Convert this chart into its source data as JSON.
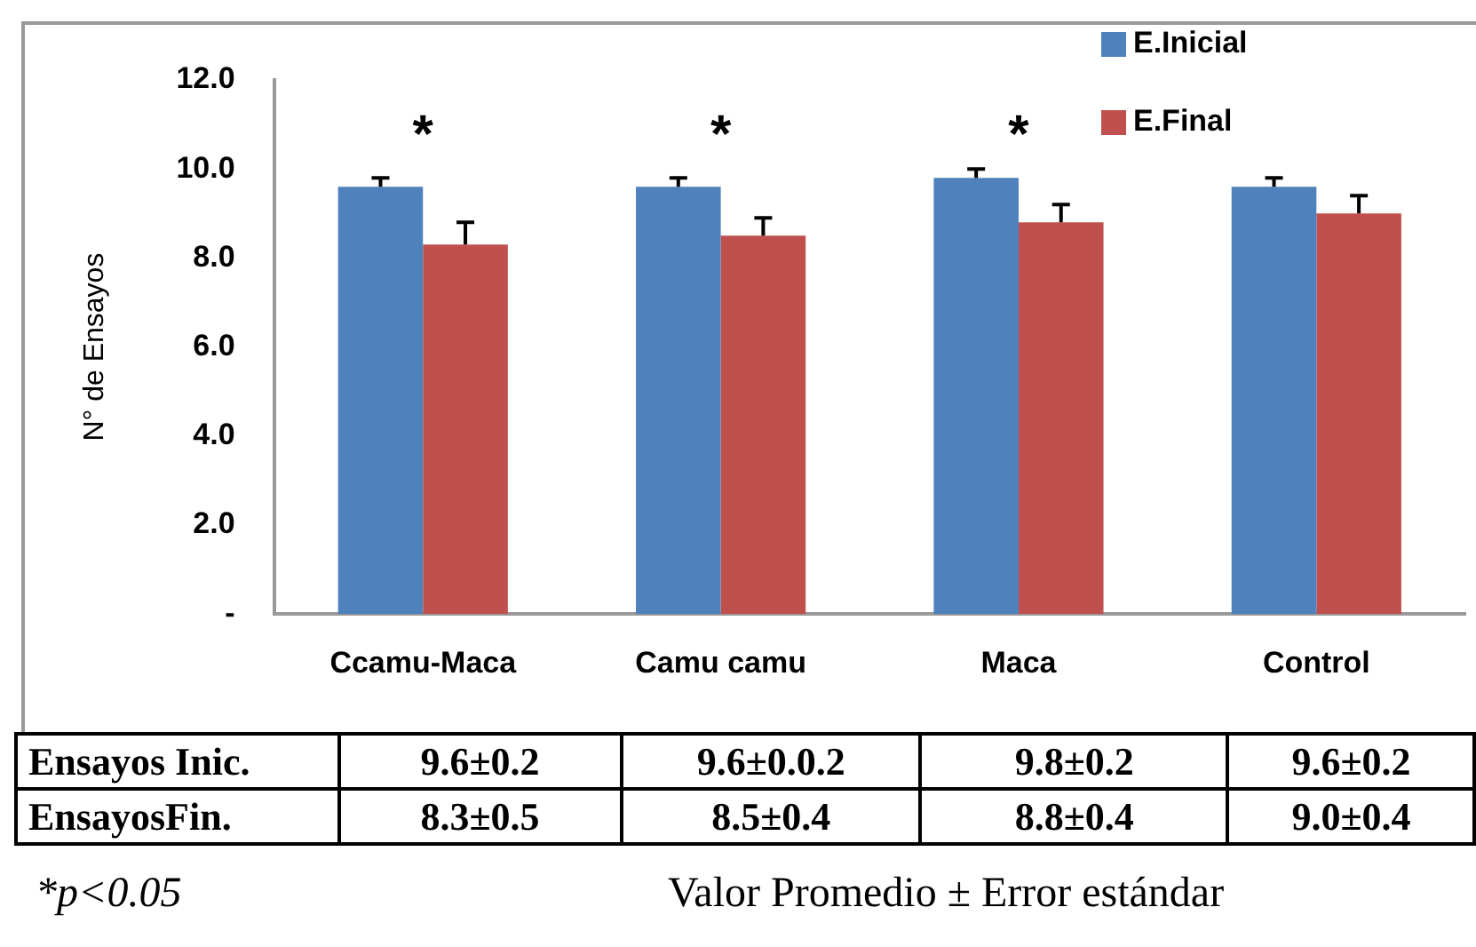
{
  "chart_data": {
    "type": "bar",
    "ylabel": "N° de Ensayos",
    "categories": [
      "Ccamu-Maca",
      "Camu camu",
      "Maca",
      "Control"
    ],
    "series": [
      {
        "name": "E.Inicial",
        "color": "#4f81bd",
        "values": [
          9.6,
          9.6,
          9.8,
          9.6
        ],
        "errors": [
          [
            9.6,
            9.8
          ],
          [
            9.6,
            9.8
          ],
          [
            9.8,
            10.0
          ],
          [
            9.6,
            9.8
          ]
        ],
        "value_labels": [
          "9.6±0.2",
          "9.6±0.0.2",
          "9.8±0.2",
          "9.6±0.2"
        ]
      },
      {
        "name": "E.Final",
        "color": "#c0504d",
        "values": [
          8.3,
          8.5,
          8.8,
          9.0
        ],
        "errors": [
          [
            8.3,
            8.8
          ],
          [
            8.5,
            8.9
          ],
          [
            8.8,
            9.2
          ],
          [
            9.0,
            9.4
          ]
        ],
        "value_labels": [
          "8.3±0.5",
          "8.5±0.4",
          "8.8±0.4",
          "9.0±0.4"
        ]
      }
    ],
    "ylim": [
      0,
      12
    ],
    "yticks": [
      {
        "value": 0,
        "label": "-"
      },
      {
        "value": 2,
        "label": "2.0"
      },
      {
        "value": 4,
        "label": "4.0"
      },
      {
        "value": 6,
        "label": "6.0"
      },
      {
        "value": 8,
        "label": "8.0"
      },
      {
        "value": 10,
        "label": "10.0"
      },
      {
        "value": 12,
        "label": "12.0"
      }
    ],
    "grid": false,
    "legend": "top right",
    "annotations": [
      "*",
      "*",
      "*",
      "Ensayos Inic.",
      "EnsayosFin.",
      "*p<0.05",
      "Valor Promedio ± Error estándar"
    ]
  }
}
